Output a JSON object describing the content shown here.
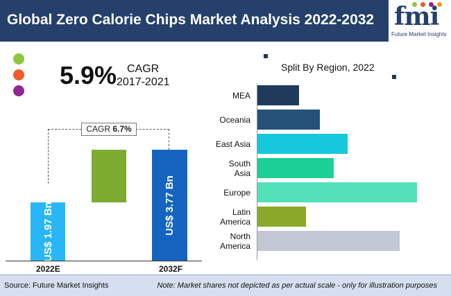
{
  "header": {
    "title": "Global Zero Calorie Chips Market Analysis 2022-2032"
  },
  "logo": {
    "wordmark": "fmi",
    "subtitle": "Future Market Insights",
    "dot_colors": [
      "#8dc63f",
      "#f15a29",
      "#92278f",
      "#f7941d"
    ]
  },
  "legend_dots": {
    "colors": [
      "#8dc63f",
      "#f15a29",
      "#92278f"
    ]
  },
  "cagr_historic": {
    "value": "5.9%",
    "label": "CAGR",
    "period": "2017-2021"
  },
  "cagr_forecast": {
    "prefix": "CAGR",
    "value": "6.7%"
  },
  "region_chart_title": "Split By Region, 2022",
  "chart_data": [
    {
      "type": "bar",
      "categories": [
        "2022E",
        "2032F"
      ],
      "values": [
        1.97,
        3.77
      ],
      "data_labels": [
        "US$ 1.97 Bn",
        "US$ 3.77 Bn"
      ],
      "increment": 1.8,
      "colors": {
        "bar_2022E": "#29b6f6",
        "increment": "#7cab2f",
        "bar_2032F": "#1565c0"
      }
    },
    {
      "type": "bar",
      "orientation": "horizontal",
      "title": "Split By Region, 2022",
      "categories": [
        "MEA",
        "Oceania",
        "East Asia",
        "South Asia",
        "Europe",
        "Latin America",
        "North America"
      ],
      "category_lines": [
        [
          "MEA"
        ],
        [
          "Oceania"
        ],
        [
          "East Asia"
        ],
        [
          "South",
          "Asia"
        ],
        [
          "Europe"
        ],
        [
          "Latin",
          "America"
        ],
        [
          "North",
          "America"
        ]
      ],
      "values": [
        6,
        9,
        13,
        11,
        23,
        7,
        20.5
      ],
      "xlim": [
        0,
        24
      ],
      "colors": [
        "#1f3b5c",
        "#265178",
        "#17c8dd",
        "#1ccf94",
        "#52e0b8",
        "#8aa829",
        "#c2c7d4"
      ]
    }
  ],
  "footer": {
    "source": "Source: Future Market Insights",
    "note": "Note: Market shares not depicted as per actual scale - only for illustration purposes"
  }
}
